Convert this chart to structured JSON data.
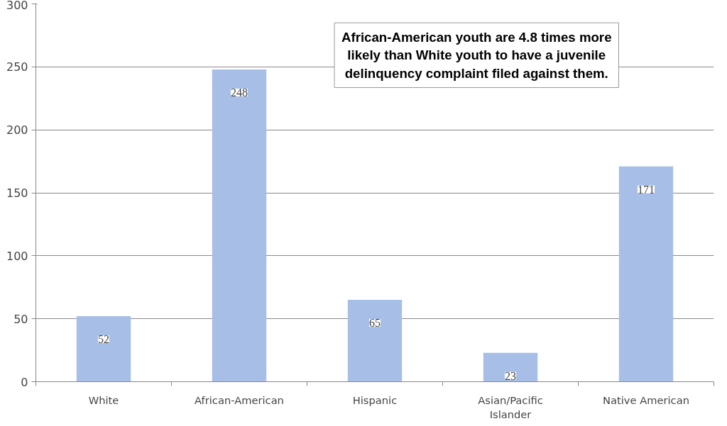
{
  "chart_data": {
    "type": "bar",
    "categories": [
      "White",
      "African-American",
      "Hispanic",
      "Asian/Pacific\nIslander",
      "Native American"
    ],
    "values": [
      52,
      248,
      65,
      23,
      171
    ],
    "color": "#a7bee6",
    "data_labels": true,
    "ylim": [
      0,
      300
    ],
    "yticks": [
      0,
      50,
      100,
      150,
      200,
      250,
      300
    ],
    "grid": "y",
    "annotations": [
      "African-American youth are 4.8 times more likely than White youth to have a juvenile delinquency complaint filed against them."
    ]
  }
}
